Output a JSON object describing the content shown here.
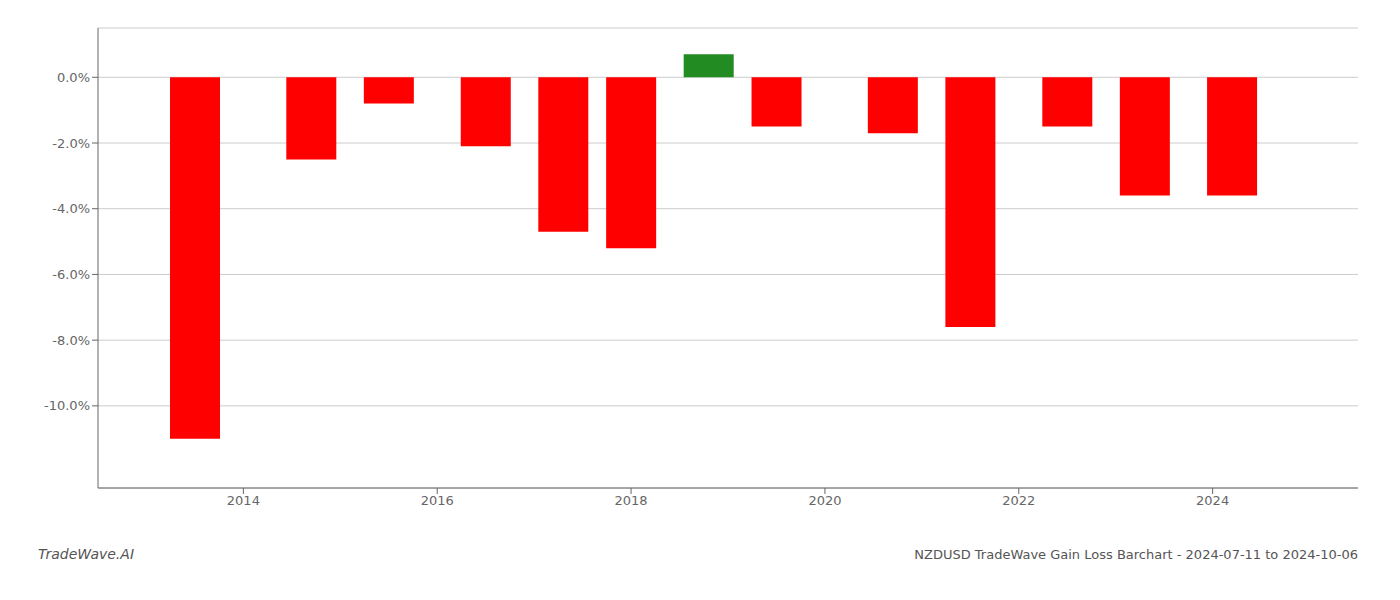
{
  "chart_data": {
    "type": "bar",
    "title": "NZDUSD TradeWave Gain Loss Barchart - 2024-07-11 to 2024-10-06",
    "annotations": [
      "TradeWave.AI"
    ],
    "x": [
      2013.5,
      2014.7,
      2015.5,
      2016.5,
      2017.3,
      2018.0,
      2018.8,
      2019.5,
      2020.7,
      2021.5,
      2022.5,
      2023.3,
      2024.2
    ],
    "values": [
      -11.0,
      -2.5,
      -0.8,
      -2.1,
      -4.7,
      -5.2,
      0.7,
      -1.5,
      -1.7,
      -7.6,
      -1.5,
      -3.6,
      -3.6
    ],
    "colors": [
      "#ff0000",
      "#ff0000",
      "#ff0000",
      "#ff0000",
      "#ff0000",
      "#ff0000",
      "#228B22",
      "#ff0000",
      "#ff0000",
      "#ff0000",
      "#ff0000",
      "#ff0000",
      "#ff0000"
    ],
    "xlim": [
      2012.5,
      2025.5
    ],
    "xticks": [
      2014,
      2016,
      2018,
      2020,
      2022,
      2024
    ],
    "ylim": [
      -12.5,
      1.5
    ],
    "yticks": [
      {
        "value": 0.0,
        "label": "0.0%"
      },
      {
        "value": -2.0,
        "label": "-2.0%"
      },
      {
        "value": -4.0,
        "label": "-4.0%"
      },
      {
        "value": -6.0,
        "label": "-6.0%"
      },
      {
        "value": -8.0,
        "label": "-8.0%"
      },
      {
        "value": -10.0,
        "label": "-10.0%"
      }
    ],
    "grid": true
  }
}
